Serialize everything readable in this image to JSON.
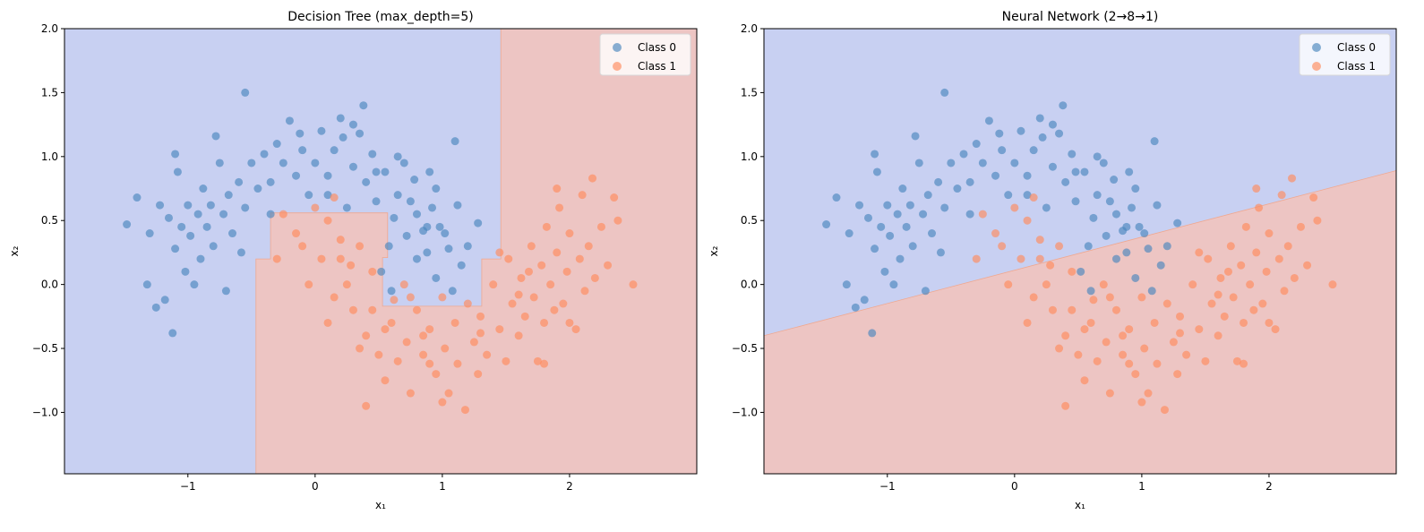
{
  "colors": {
    "region0": "#c8d0f2",
    "region1": "#edc5c3",
    "class0": "#4a85bd",
    "class1": "#ff8a5c"
  },
  "chart_data": [
    {
      "type": "scatter",
      "title": "Decision Tree (max_depth=5)",
      "xlabel": "x₁",
      "ylabel": "x₂",
      "xlim": [
        -1.97,
        3.0
      ],
      "ylim": [
        -1.48,
        2.0
      ],
      "xticks": [
        {
          "v": -1,
          "label": "−1"
        },
        {
          "v": 0,
          "label": "0"
        },
        {
          "v": 1,
          "label": "1"
        },
        {
          "v": 2,
          "label": "2"
        }
      ],
      "yticks": [
        {
          "v": -1,
          "label": "−1.0"
        },
        {
          "v": -0.5,
          "label": "−0.5"
        },
        {
          "v": 0,
          "label": "0.0"
        },
        {
          "v": 0.5,
          "label": "0.5"
        },
        {
          "v": 1,
          "label": "1.0"
        },
        {
          "v": 1.5,
          "label": "1.5"
        },
        {
          "v": 2,
          "label": "2.0"
        }
      ],
      "legend": {
        "placement": "top-right",
        "entries": [
          "Class 0",
          "Class 1"
        ]
      },
      "decision_region_class0": [
        [
          -1.97,
          -1.48
        ],
        [
          -0.465,
          -1.48
        ],
        [
          -0.465,
          0.2
        ],
        [
          -0.35,
          0.2
        ],
        [
          -0.35,
          0.56
        ],
        [
          0.57,
          0.56
        ],
        [
          0.57,
          0.21
        ],
        [
          0.53,
          0.21
        ],
        [
          0.53,
          -0.17
        ],
        [
          1.31,
          -0.17
        ],
        [
          1.31,
          0.2
        ],
        [
          1.46,
          0.2
        ],
        [
          1.46,
          2.0
        ],
        [
          -1.97,
          2.0
        ]
      ]
    },
    {
      "type": "scatter",
      "title": "Neural Network (2→8→1)",
      "xlabel": "x₁",
      "ylabel": "x₂",
      "xlim": [
        -1.97,
        3.0
      ],
      "ylim": [
        -1.48,
        2.0
      ],
      "xticks": [
        {
          "v": -1,
          "label": "−1"
        },
        {
          "v": 0,
          "label": "0"
        },
        {
          "v": 1,
          "label": "1"
        },
        {
          "v": 2,
          "label": "2"
        }
      ],
      "yticks": [
        {
          "v": -1,
          "label": "−1.0"
        },
        {
          "v": -0.5,
          "label": "−0.5"
        },
        {
          "v": 0,
          "label": "0.0"
        },
        {
          "v": 0.5,
          "label": "0.5"
        },
        {
          "v": 1,
          "label": "1.0"
        },
        {
          "v": 1.5,
          "label": "1.5"
        },
        {
          "v": 2,
          "label": "2.0"
        }
      ],
      "legend": {
        "placement": "top-right",
        "entries": [
          "Class 0",
          "Class 1"
        ]
      },
      "decision_region_class0": [
        [
          -1.97,
          -0.4
        ],
        [
          3.0,
          0.89
        ],
        [
          3.0,
          2.0
        ],
        [
          -1.97,
          2.0
        ]
      ]
    }
  ],
  "points": {
    "class0": [
      [
        1.12,
        0.62
      ],
      [
        1.05,
        0.28
      ],
      [
        0.98,
        0.45
      ],
      [
        1.15,
        0.15
      ],
      [
        0.95,
        0.05
      ],
      [
        1.08,
        -0.05
      ],
      [
        0.88,
        0.25
      ],
      [
        0.92,
        0.6
      ],
      [
        1.02,
        0.4
      ],
      [
        0.85,
        0.42
      ],
      [
        0.95,
        0.75
      ],
      [
        0.8,
        0.55
      ],
      [
        0.72,
        0.38
      ],
      [
        0.9,
        0.88
      ],
      [
        0.78,
        0.82
      ],
      [
        0.65,
        0.7
      ],
      [
        0.7,
        0.95
      ],
      [
        0.62,
        0.52
      ],
      [
        0.58,
        0.3
      ],
      [
        0.52,
        0.1
      ],
      [
        0.55,
        0.88
      ],
      [
        0.48,
        0.65
      ],
      [
        0.45,
        1.02
      ],
      [
        0.4,
        0.8
      ],
      [
        0.35,
        1.18
      ],
      [
        0.3,
        0.92
      ],
      [
        0.25,
        0.6
      ],
      [
        0.38,
        1.4
      ],
      [
        0.2,
        1.3
      ],
      [
        0.15,
        1.05
      ],
      [
        0.1,
        0.85
      ],
      [
        0.05,
        1.2
      ],
      [
        0.0,
        0.95
      ],
      [
        -0.05,
        0.7
      ],
      [
        -0.1,
        1.05
      ],
      [
        -0.15,
        0.85
      ],
      [
        -0.2,
        1.28
      ],
      [
        -0.25,
        0.95
      ],
      [
        -0.3,
        1.1
      ],
      [
        -0.35,
        0.8
      ],
      [
        -0.4,
        1.02
      ],
      [
        -0.45,
        0.75
      ],
      [
        -0.5,
        0.95
      ],
      [
        -0.55,
        1.5
      ],
      [
        -0.55,
        0.6
      ],
      [
        -0.6,
        0.8
      ],
      [
        -0.65,
        0.4
      ],
      [
        -0.68,
        0.7
      ],
      [
        -0.72,
        0.55
      ],
      [
        -0.75,
        0.95
      ],
      [
        -0.78,
        1.16
      ],
      [
        -0.8,
        0.3
      ],
      [
        -0.82,
        0.62
      ],
      [
        -0.85,
        0.45
      ],
      [
        -0.88,
        0.75
      ],
      [
        -0.9,
        0.2
      ],
      [
        -0.92,
        0.55
      ],
      [
        -0.95,
        0.0
      ],
      [
        -0.98,
        0.38
      ],
      [
        -1.0,
        0.62
      ],
      [
        -1.02,
        0.1
      ],
      [
        -1.05,
        0.45
      ],
      [
        -1.08,
        0.88
      ],
      [
        -1.1,
        0.28
      ],
      [
        -1.1,
        1.02
      ],
      [
        -1.12,
        -0.38
      ],
      [
        -1.15,
        0.52
      ],
      [
        -1.18,
        -0.12
      ],
      [
        -1.22,
        0.62
      ],
      [
        -1.25,
        -0.18
      ],
      [
        -1.3,
        0.4
      ],
      [
        -1.32,
        0.0
      ],
      [
        -1.4,
        0.68
      ],
      [
        -1.48,
        0.47
      ],
      [
        -0.7,
        -0.05
      ],
      [
        -0.58,
        0.25
      ],
      [
        -0.35,
        0.55
      ],
      [
        0.1,
        0.7
      ],
      [
        0.65,
        1.0
      ],
      [
        0.8,
        0.2
      ],
      [
        0.22,
        1.15
      ],
      [
        -0.12,
        1.18
      ],
      [
        0.48,
        0.88
      ],
      [
        0.75,
        0.65
      ],
      [
        1.1,
        1.12
      ],
      [
        1.28,
        0.48
      ],
      [
        1.2,
        0.3
      ],
      [
        0.6,
        -0.05
      ],
      [
        0.88,
        0.45
      ],
      [
        0.3,
        1.25
      ]
    ],
    "class1": [
      [
        -0.3,
        0.2
      ],
      [
        -0.25,
        0.55
      ],
      [
        -0.15,
        0.4
      ],
      [
        -0.05,
        0.0
      ],
      [
        0.0,
        0.6
      ],
      [
        0.05,
        0.2
      ],
      [
        0.1,
        0.5
      ],
      [
        0.15,
        -0.1
      ],
      [
        0.2,
        0.35
      ],
      [
        0.25,
        0.0
      ],
      [
        0.3,
        -0.2
      ],
      [
        0.15,
        0.68
      ],
      [
        0.35,
        0.3
      ],
      [
        0.4,
        -0.4
      ],
      [
        0.45,
        0.1
      ],
      [
        0.5,
        -0.55
      ],
      [
        0.45,
        -0.2
      ],
      [
        0.55,
        -0.75
      ],
      [
        0.6,
        -0.3
      ],
      [
        0.65,
        -0.6
      ],
      [
        0.7,
        0.0
      ],
      [
        0.72,
        -0.45
      ],
      [
        0.75,
        -0.85
      ],
      [
        0.8,
        -0.2
      ],
      [
        0.85,
        -0.55
      ],
      [
        0.9,
        -0.35
      ],
      [
        0.95,
        -0.7
      ],
      [
        1.0,
        -0.1
      ],
      [
        1.02,
        -0.5
      ],
      [
        1.05,
        -0.85
      ],
      [
        1.1,
        -0.3
      ],
      [
        1.12,
        -0.62
      ],
      [
        1.18,
        -0.98
      ],
      [
        1.2,
        -0.15
      ],
      [
        1.25,
        -0.45
      ],
      [
        1.28,
        -0.7
      ],
      [
        1.3,
        -0.25
      ],
      [
        1.35,
        -0.55
      ],
      [
        1.4,
        0.0
      ],
      [
        1.45,
        -0.35
      ],
      [
        1.5,
        -0.6
      ],
      [
        1.52,
        0.2
      ],
      [
        1.55,
        -0.15
      ],
      [
        1.6,
        -0.4
      ],
      [
        1.62,
        0.05
      ],
      [
        1.65,
        -0.25
      ],
      [
        1.7,
        0.3
      ],
      [
        1.72,
        -0.1
      ],
      [
        1.75,
        -0.6
      ],
      [
        1.78,
        0.15
      ],
      [
        1.8,
        -0.3
      ],
      [
        1.82,
        0.45
      ],
      [
        1.85,
        0.0
      ],
      [
        1.88,
        -0.2
      ],
      [
        1.9,
        0.25
      ],
      [
        1.92,
        0.6
      ],
      [
        1.95,
        -0.15
      ],
      [
        1.98,
        0.1
      ],
      [
        2.0,
        0.4
      ],
      [
        2.05,
        -0.35
      ],
      [
        2.08,
        0.2
      ],
      [
        2.1,
        0.7
      ],
      [
        2.12,
        -0.05
      ],
      [
        2.15,
        0.3
      ],
      [
        2.18,
        0.83
      ],
      [
        2.2,
        0.05
      ],
      [
        2.25,
        0.45
      ],
      [
        2.3,
        0.15
      ],
      [
        2.35,
        0.68
      ],
      [
        2.38,
        0.5
      ],
      [
        2.5,
        0.0
      ],
      [
        1.9,
        0.75
      ],
      [
        1.8,
        -0.62
      ],
      [
        0.4,
        -0.95
      ],
      [
        0.85,
        -0.4
      ],
      [
        0.2,
        0.2
      ],
      [
        0.35,
        -0.5
      ],
      [
        -0.1,
        0.3
      ],
      [
        0.62,
        -0.12
      ],
      [
        1.0,
        -0.92
      ],
      [
        0.75,
        -0.1
      ],
      [
        1.45,
        0.25
      ],
      [
        1.6,
        -0.08
      ],
      [
        2.0,
        -0.3
      ],
      [
        0.28,
        0.15
      ],
      [
        0.9,
        -0.62
      ],
      [
        1.3,
        -0.38
      ],
      [
        1.68,
        0.1
      ],
      [
        0.55,
        -0.35
      ],
      [
        0.1,
        -0.3
      ]
    ]
  }
}
